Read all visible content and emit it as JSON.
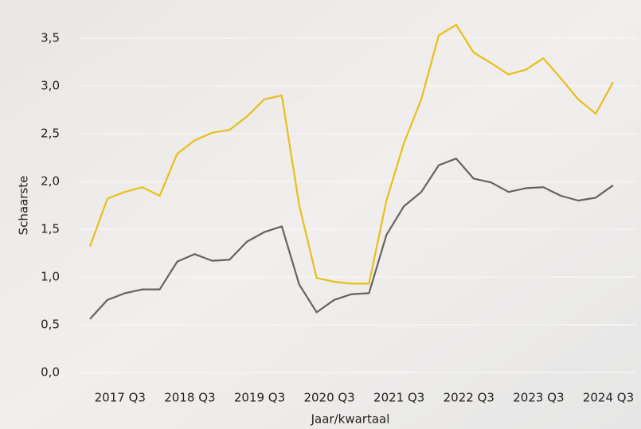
{
  "chart_data": {
    "type": "line",
    "x_label": "Jaar/kwartaal",
    "y_label": "Schaarste",
    "categories": [
      null,
      null,
      "2017 Q3",
      null,
      null,
      null,
      "2018 Q3",
      null,
      null,
      null,
      "2019 Q3",
      null,
      null,
      null,
      "2020 Q3",
      null,
      null,
      null,
      "2021 Q3",
      null,
      null,
      null,
      "2022 Q3",
      null,
      null,
      null,
      "2023 Q3",
      null,
      null,
      null,
      "2024 Q3"
    ],
    "series": [
      {
        "color": "#e8bf1a",
        "values": [
          1.32,
          1.82,
          1.89,
          1.94,
          1.85,
          2.29,
          2.43,
          2.51,
          2.54,
          2.68,
          2.86,
          2.9,
          1.75,
          0.99,
          0.95,
          0.93,
          0.93,
          1.8,
          2.4,
          2.86,
          3.53,
          3.64,
          3.35,
          3.24,
          3.12,
          3.17,
          3.29,
          3.08,
          2.86,
          2.71,
          3.04
        ]
      },
      {
        "color": "#636363",
        "values": [
          0.56,
          0.76,
          0.83,
          0.87,
          0.87,
          1.16,
          1.24,
          1.17,
          1.18,
          1.37,
          1.47,
          1.53,
          0.92,
          0.63,
          0.76,
          0.82,
          0.83,
          1.44,
          1.74,
          1.89,
          2.17,
          2.24,
          2.03,
          1.99,
          1.89,
          1.93,
          1.94,
          1.85,
          1.8,
          1.83,
          1.96
        ]
      }
    ],
    "ylim": [
      0,
      3.5
    ],
    "yticks": [
      {
        "value": 0,
        "label": "0,0"
      },
      {
        "value": 0.5,
        "label": "0,5"
      },
      {
        "value": 1,
        "label": "1,0"
      },
      {
        "value": 1.5,
        "label": "1,5"
      },
      {
        "value": 2,
        "label": "2,0"
      },
      {
        "value": 2.5,
        "label": "2,5"
      },
      {
        "value": 3,
        "label": "3,0"
      },
      {
        "value": 3.5,
        "label": "3,5"
      }
    ],
    "grid": true
  }
}
